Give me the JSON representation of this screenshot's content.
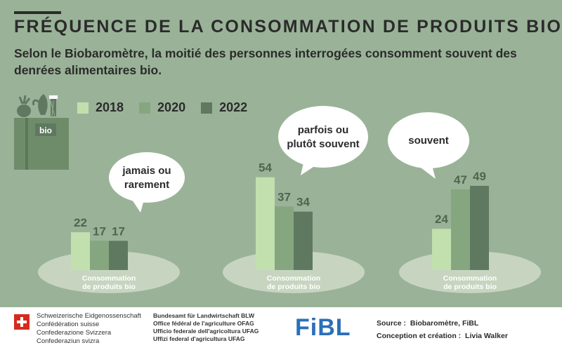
{
  "header": {
    "title": "FRÉQUENCE DE LA CONSOMMATION DE PRODUITS BIO",
    "subtitle": "Selon le Biobaromètre, la moitié des personnes interrogées consomment souvent des denrées alimentaires bio."
  },
  "bag_label": "bio",
  "colors": {
    "background": "#9ab398",
    "y2018": "#c2dfae",
    "y2020": "#86a67f",
    "y2022": "#5f7860",
    "ellipse": "#c7d5c0",
    "ellipse_text": "#ffffff",
    "value_text": "#4f654e"
  },
  "chart_data": {
    "type": "bar",
    "categories": [
      "jamais ou rarement",
      "parfois ou plutôt souvent",
      "souvent"
    ],
    "base_label": "Consommation de produits bio",
    "series": [
      {
        "name": "2018",
        "values": [
          22,
          54,
          24
        ]
      },
      {
        "name": "2020",
        "values": [
          17,
          37,
          47
        ]
      },
      {
        "name": "2022",
        "values": [
          17,
          34,
          49
        ]
      }
    ],
    "ylim": [
      0,
      100
    ],
    "grid": false,
    "legend": "top-left"
  },
  "footer": {
    "admin_lines": [
      "Schweizerische Eidgenossenschaft",
      "Confédération suisse",
      "Confederazione Svizzera",
      "Confederaziun svizra"
    ],
    "office_lines": [
      "Bundesamt für Landwirtschaft BLW",
      "Office fédéral de l'agriculture OFAG",
      "Ufficio federale dell'agricoltura UFAG",
      "Uffizi federal d'agricultura UFAG"
    ],
    "logo": "FiBL",
    "source_label": "Source :",
    "source_value": "Biobaromètre, FiBL",
    "credit_label": "Conception et création :",
    "credit_value": "Livia Walker"
  }
}
